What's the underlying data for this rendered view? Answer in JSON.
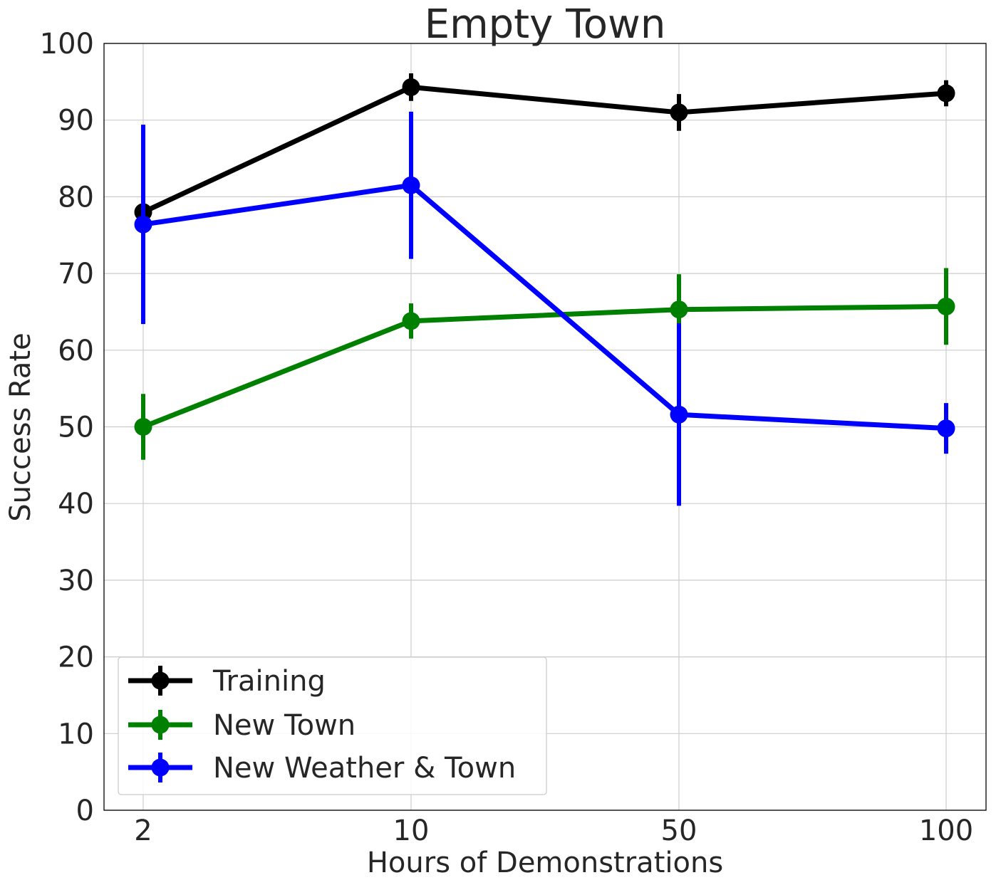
{
  "chart_data": {
    "type": "line",
    "title": "Empty Town",
    "xlabel": "Hours of Demonstrations",
    "ylabel": "Success Rate",
    "categories": [
      "2",
      "10",
      "50",
      "100"
    ],
    "ylim": [
      0,
      100
    ],
    "yticks": [
      "0",
      "10",
      "20",
      "30",
      "40",
      "50",
      "60",
      "70",
      "80",
      "90",
      "100"
    ],
    "grid": true,
    "legend_position": "lower-left",
    "series": [
      {
        "name": "Training",
        "color": "#000000",
        "values": [
          78.0,
          94.3,
          91.0,
          93.5
        ],
        "errors": [
          1.0,
          1.8,
          2.4,
          1.7
        ]
      },
      {
        "name": "New Town",
        "color": "#008000",
        "values": [
          50.0,
          63.8,
          65.3,
          65.7
        ],
        "errors": [
          4.3,
          2.3,
          4.6,
          5.0
        ]
      },
      {
        "name": "New Weather & Town",
        "color": "#0000ff",
        "values": [
          76.4,
          81.5,
          51.6,
          49.8
        ],
        "errors": [
          13.0,
          9.6,
          11.9,
          3.3
        ]
      }
    ]
  }
}
